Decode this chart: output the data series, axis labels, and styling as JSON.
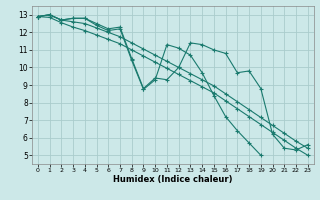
{
  "xlabel": "Humidex (Indice chaleur)",
  "bg_color": "#cce8e8",
  "grid_color": "#aacccc",
  "line_color": "#1a7a6e",
  "xlim": [
    -0.5,
    23.5
  ],
  "ylim": [
    4.5,
    13.5
  ],
  "xticks": [
    0,
    1,
    2,
    3,
    4,
    5,
    6,
    7,
    8,
    9,
    10,
    11,
    12,
    13,
    14,
    15,
    16,
    17,
    18,
    19,
    20,
    21,
    22,
    23
  ],
  "yticks": [
    5,
    6,
    7,
    8,
    9,
    10,
    11,
    12,
    13
  ],
  "series": [
    {
      "x": [
        0,
        1,
        2,
        3,
        4,
        5,
        6,
        7,
        8,
        9,
        10,
        11,
        12,
        13,
        14,
        15,
        16,
        17,
        18,
        19,
        20,
        21,
        22,
        23
      ],
      "y": [
        12.9,
        13.0,
        12.7,
        12.8,
        12.8,
        12.5,
        12.2,
        12.3,
        10.5,
        8.8,
        9.4,
        9.3,
        10.0,
        11.4,
        11.3,
        11.0,
        10.8,
        9.7,
        9.8,
        8.8,
        6.2,
        5.4,
        5.3,
        5.6
      ]
    },
    {
      "x": [
        0,
        1,
        2,
        3,
        4,
        5,
        6,
        7,
        8,
        9,
        10,
        11,
        12,
        13,
        14,
        15,
        16,
        17,
        18,
        19,
        20,
        21,
        22,
        23
      ],
      "y": [
        12.9,
        13.0,
        12.7,
        12.8,
        12.8,
        12.4,
        12.1,
        12.2,
        10.4,
        8.75,
        9.3,
        11.3,
        11.1,
        10.7,
        9.7,
        8.4,
        7.2,
        6.4,
        5.7,
        5.0,
        null,
        null,
        null,
        null
      ]
    },
    {
      "x": [
        0,
        1,
        2,
        3,
        4,
        5,
        6,
        7,
        8,
        9,
        10,
        11,
        12,
        13,
        14,
        15,
        16,
        17,
        18,
        19,
        20,
        21,
        22,
        23
      ],
      "y": [
        12.9,
        12.85,
        12.55,
        12.3,
        12.1,
        11.85,
        11.6,
        11.35,
        11.0,
        10.65,
        10.3,
        9.95,
        9.6,
        9.25,
        8.9,
        8.55,
        8.1,
        7.65,
        7.2,
        6.75,
        6.3,
        5.85,
        5.4,
        5.0
      ]
    },
    {
      "x": [
        0,
        1,
        2,
        3,
        4,
        5,
        6,
        7,
        8,
        9,
        10,
        11,
        12,
        13,
        14,
        15,
        16,
        17,
        18,
        19,
        20,
        21,
        22,
        23
      ],
      "y": [
        12.9,
        13.0,
        12.7,
        12.6,
        12.5,
        12.25,
        12.0,
        11.75,
        11.4,
        11.05,
        10.7,
        10.35,
        10.0,
        9.65,
        9.3,
        8.95,
        8.5,
        8.05,
        7.6,
        7.15,
        6.7,
        6.25,
        5.8,
        5.4
      ]
    }
  ]
}
